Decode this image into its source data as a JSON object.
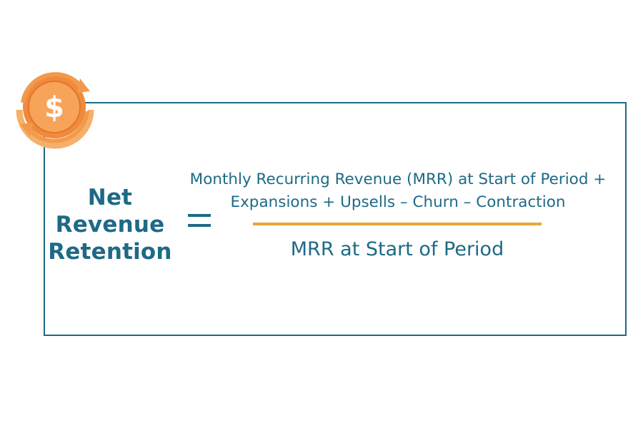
{
  "formula": {
    "lhs_lines": [
      "Net",
      "Revenue",
      "Retention"
    ],
    "equals_sign": "=",
    "numerator_lines": [
      "Monthly Recurring Revenue (MRR) at Start of Period +",
      "Expansions + Upsells – Churn – Contraction"
    ],
    "denominator": "MRR at Start of Period"
  },
  "badge": {
    "icon": "dollar-cycle-icon",
    "glyph": "$"
  },
  "colors": {
    "primary": "#1e6a86",
    "accent": "#e7a634",
    "badge_outer": "#f08a3c",
    "badge_inner": "#f7a35a"
  }
}
